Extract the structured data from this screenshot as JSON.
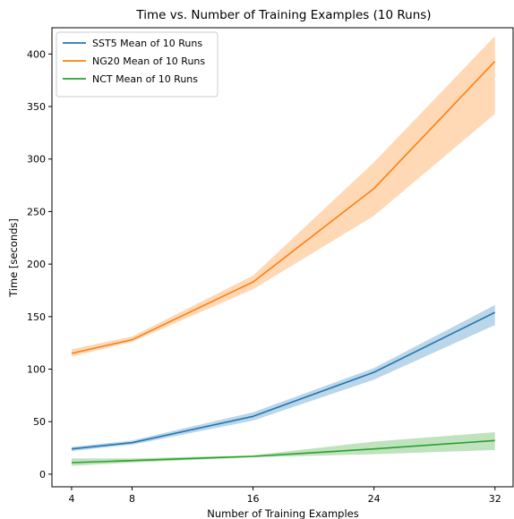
{
  "chart_data": {
    "type": "line",
    "title": "Time vs. Number of Training Examples (10 Runs)",
    "xlabel": "Number of Training Examples",
    "ylabel": "Time [seconds]",
    "x": [
      4,
      8,
      16,
      24,
      32
    ],
    "xticks": [
      4,
      8,
      16,
      24,
      32
    ],
    "yticks": [
      0,
      50,
      100,
      150,
      200,
      250,
      300,
      350,
      400
    ],
    "xlim": [
      2.7,
      33.2
    ],
    "ylim": [
      -12,
      425
    ],
    "grid": false,
    "legend_position": "top-left",
    "series": [
      {
        "name": "SST5 Mean of 10 Runs",
        "color": "#1f77b4",
        "values": [
          24,
          30,
          55,
          97,
          154
        ],
        "lower": [
          22,
          28,
          51,
          90,
          142
        ],
        "upper": [
          26,
          32,
          59,
          101,
          161
        ]
      },
      {
        "name": "NG20 Mean of 10 Runs",
        "color": "#ff7f0e",
        "values": [
          115,
          128,
          183,
          272,
          393
        ],
        "lower": [
          112,
          126,
          176,
          246,
          343
        ],
        "upper": [
          119,
          131,
          189,
          297,
          417
        ]
      },
      {
        "name": "NCT Mean of 10 Runs",
        "color": "#2ca02c",
        "values": [
          11,
          13,
          17,
          24,
          32
        ],
        "lower": [
          8,
          11,
          16,
          19,
          23
        ],
        "upper": [
          15,
          15,
          18,
          31,
          40
        ]
      }
    ]
  }
}
